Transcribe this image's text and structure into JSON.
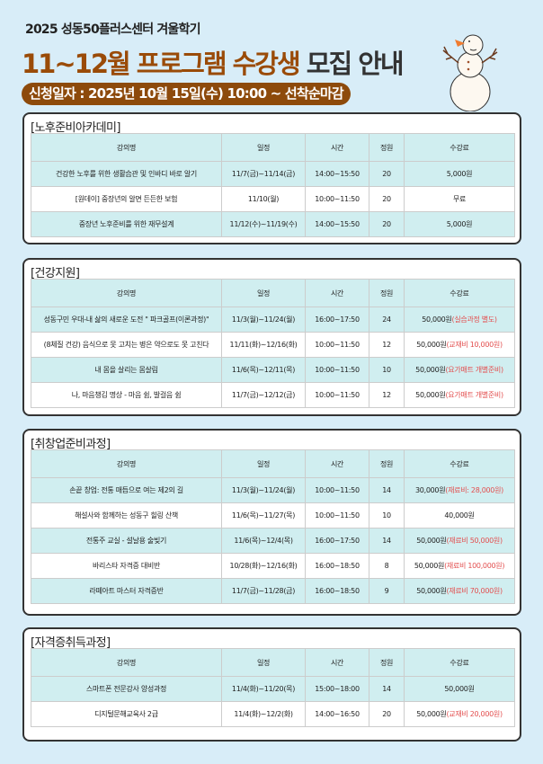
{
  "header": {
    "subtitle": "2025 성동50플러스센터 겨울학기",
    "title_main": "11~12월 프로그램 수강생",
    "title_end": "모집 안내",
    "apply": "신청일자 : 2025년 10월 15일(수) 10:00 ~ 선착순마감"
  },
  "colors": {
    "brown": "#9a4b08",
    "row_alt": "#d0eef0",
    "note": "#e34f4f"
  },
  "columns": [
    "강의명",
    "일정",
    "시간",
    "정원",
    "수강료"
  ],
  "sections": [
    {
      "title": "[노후준비아카데미]",
      "rows": [
        [
          "건강한 노후를 위한 생활습관 및 인바디 바로 알기",
          "11/7(금)~11/14(금)",
          "14:00~15:50",
          "20",
          "5,000원",
          ""
        ],
        [
          "[원데이] 중장년의 알면 든든한 보험",
          "11/10(월)",
          "10:00~11:50",
          "20",
          "무료",
          ""
        ],
        [
          "중장년 노후준비를 위한 재무설계",
          "11/12(수)~11/19(수)",
          "14:00~15:50",
          "20",
          "5,000원",
          ""
        ]
      ]
    },
    {
      "title": "[건강지원]",
      "rows": [
        [
          "성동구민 우대-내 삶의 새로운 도전 \" 파크골프(이론과정)\"",
          "11/3(월)~11/24(월)",
          "16:00~17:50",
          "24",
          "50,000원",
          "(실습과정 별도)"
        ],
        [
          "(8체질 건강) 음식으로 못 고치는 병은 약으로도 못 고친다",
          "11/11(화)~12/16(화)",
          "10:00~11:50",
          "12",
          "50,000원",
          "(교재비 10,000원)"
        ],
        [
          "내 몸을 살리는 몸살림",
          "11/6(목)~12/11(목)",
          "10:00~11:50",
          "10",
          "50,000원",
          "(요가매트 개별준비)"
        ],
        [
          "나, 마음챙김 명상 - 마음 쉼, 발걸음 쉼",
          "11/7(금)~12/12(금)",
          "10:00~11:50",
          "12",
          "50,000원",
          "(요가매트 개별준비)"
        ]
      ]
    },
    {
      "title": "[취창업준비과정]",
      "rows": [
        [
          "손끝 창업: 전통 매듭으로 여는 제2의 길",
          "11/3(월)~11/24(월)",
          "10:00~11:50",
          "14",
          "30,000원",
          "(재료비: 28,000원)"
        ],
        [
          "해설사와 함께하는 성동구 힐링 산책",
          "11/6(목)~11/27(목)",
          "10:00~11:50",
          "10",
          "40,000원",
          ""
        ],
        [
          "전통주 교실 - 설날용 술빚기",
          "11/6(목)~12/4(목)",
          "16:00~17:50",
          "14",
          "50,000원",
          "(재료비 50,000원)"
        ],
        [
          "바리스타 자격증 대비반",
          "10/28(화)~12/16(화)",
          "16:00~18:50",
          "8",
          "50,000원",
          "(재료비 100,000원)"
        ],
        [
          "라떼아트 마스터 자격증반",
          "11/7(금)~11/28(금)",
          "16:00~18:50",
          "9",
          "50,000원",
          "(재료비 70,000원)"
        ]
      ]
    },
    {
      "title": "[자격증취득과정]",
      "rows": [
        [
          "스마트폰 전문강사 양성과정",
          "11/4(화)~11/20(목)",
          "15:00~18:00",
          "14",
          "50,000원",
          ""
        ],
        [
          "디지털문해교육사 2급",
          "11/4(화)~12/2(화)",
          "14:00~16:50",
          "20",
          "50,000원",
          "(교재비 20,000원)"
        ]
      ]
    }
  ]
}
